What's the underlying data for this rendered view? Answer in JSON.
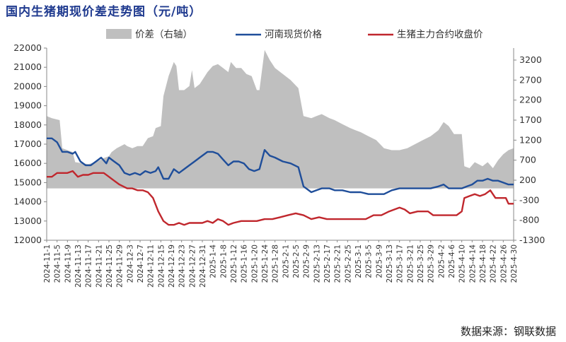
{
  "title": "国内生猪期现价差走势图（元/吨）",
  "source": "数据来源：钢联数据",
  "colors": {
    "spread": "#bfbfbf",
    "spot": "#1f4e9a",
    "futures": "#c0272d",
    "title": "#1f3a8f",
    "axis": "#888888"
  },
  "chart_data": {
    "type": "area",
    "title": "国内生猪期现价差走势图（元/吨）",
    "legend_position": "top",
    "grid": false,
    "left_axis": {
      "ylim": [
        12000,
        22000
      ],
      "ticks": [
        12000,
        13000,
        14000,
        15000,
        16000,
        17000,
        18000,
        19000,
        20000,
        21000,
        22000
      ]
    },
    "right_axis": {
      "ylim": [
        -1300,
        3500
      ],
      "ticks": [
        -1300,
        -800,
        -300,
        200,
        700,
        1200,
        1700,
        2200,
        2700,
        3200
      ]
    },
    "x_labels": [
      "2024-11-1",
      "2024-11-5",
      "2024-11-9",
      "2024-11-13",
      "2024-11-17",
      "2024-11-21",
      "2024-11-25",
      "2024-11-29",
      "2024-12-3",
      "2024-12-7",
      "2024-12-11",
      "2024-12-15",
      "2024-12-19",
      "2024-12-23",
      "2024-12-27",
      "2024-12-31",
      "2025-1-4",
      "2025-1-8",
      "2025-1-12",
      "2025-1-16",
      "2025-1-20",
      "2025-1-24",
      "2025-1-28",
      "2025-2-1",
      "2025-2-5",
      "2025-2-9",
      "2025-2-13",
      "2025-2-17",
      "2025-2-21",
      "2025-2-25",
      "2025-3-1",
      "2025-3-5",
      "2025-3-9",
      "2025-3-13",
      "2025-3-17",
      "2025-3-21",
      "2025-3-25",
      "2025-3-29",
      "2025-4-2",
      "2025-4-6",
      "2025-4-10",
      "2025-4-14",
      "2025-4-18",
      "2025-4-22",
      "2025-4-26",
      "2025-4-30"
    ],
    "series": [
      {
        "name": "价差（右轴）",
        "axis": "right",
        "type": "area",
        "points": [
          [
            "2024-11-1",
            1800
          ],
          [
            "2024-11-3",
            1750
          ],
          [
            "2024-11-6",
            1700
          ],
          [
            "2024-11-7",
            1000
          ],
          [
            "2024-11-9",
            950
          ],
          [
            "2024-11-11",
            900
          ],
          [
            "2024-11-12",
            650
          ],
          [
            "2024-11-15",
            620
          ],
          [
            "2024-11-17",
            600
          ],
          [
            "2024-11-20",
            650
          ],
          [
            "2024-11-23",
            750
          ],
          [
            "2024-11-25",
            800
          ],
          [
            "2024-11-26",
            900
          ],
          [
            "2024-11-28",
            1000
          ],
          [
            "2024-12-1",
            1100
          ],
          [
            "2024-12-2",
            1050
          ],
          [
            "2024-12-4",
            1000
          ],
          [
            "2024-12-6",
            1050
          ],
          [
            "2024-12-8",
            1050
          ],
          [
            "2024-12-10",
            1250
          ],
          [
            "2024-12-12",
            1300
          ],
          [
            "2024-12-13",
            1500
          ],
          [
            "2024-12-15",
            1550
          ],
          [
            "2024-12-16",
            2300
          ],
          [
            "2024-12-18",
            2800
          ],
          [
            "2024-12-20",
            3150
          ],
          [
            "2024-12-21",
            3050
          ],
          [
            "2024-12-22",
            2450
          ],
          [
            "2024-12-24",
            2450
          ],
          [
            "2024-12-26",
            2550
          ],
          [
            "2024-12-27",
            2950
          ],
          [
            "2024-12-28",
            2500
          ],
          [
            "2024-12-30",
            2600
          ],
          [
            "2025-1-2",
            2900
          ],
          [
            "2025-1-4",
            3050
          ],
          [
            "2025-1-6",
            3100
          ],
          [
            "2025-1-8",
            3000
          ],
          [
            "2025-1-10",
            2900
          ],
          [
            "2025-1-11",
            3150
          ],
          [
            "2025-1-13",
            3000
          ],
          [
            "2025-1-15",
            3000
          ],
          [
            "2025-1-17",
            2850
          ],
          [
            "2025-1-19",
            2800
          ],
          [
            "2025-1-21",
            2450
          ],
          [
            "2025-1-22",
            2450
          ],
          [
            "2025-1-24",
            3450
          ],
          [
            "2025-1-26",
            3200
          ],
          [
            "2025-1-28",
            3000
          ],
          [
            "2025-1-31",
            2850
          ],
          [
            "2025-2-3",
            2700
          ],
          [
            "2025-2-6",
            2500
          ],
          [
            "2025-2-8",
            1800
          ],
          [
            "2025-2-11",
            1750
          ],
          [
            "2025-2-13",
            1800
          ],
          [
            "2025-2-15",
            1850
          ],
          [
            "2025-2-18",
            1750
          ],
          [
            "2025-2-20",
            1700
          ],
          [
            "2025-2-23",
            1600
          ],
          [
            "2025-2-26",
            1500
          ],
          [
            "2025-2-28",
            1450
          ],
          [
            "2025-3-2",
            1400
          ],
          [
            "2025-3-5",
            1300
          ],
          [
            "2025-3-8",
            1200
          ],
          [
            "2025-3-11",
            1000
          ],
          [
            "2025-3-14",
            950
          ],
          [
            "2025-3-17",
            950
          ],
          [
            "2025-3-20",
            1000
          ],
          [
            "2025-3-23",
            1100
          ],
          [
            "2025-3-26",
            1200
          ],
          [
            "2025-3-29",
            1300
          ],
          [
            "2025-4-1",
            1450
          ],
          [
            "2025-4-3",
            1650
          ],
          [
            "2025-4-5",
            1550
          ],
          [
            "2025-4-7",
            1350
          ],
          [
            "2025-4-10",
            1350
          ],
          [
            "2025-4-11",
            550
          ],
          [
            "2025-4-13",
            500
          ],
          [
            "2025-4-15",
            650
          ],
          [
            "2025-4-18",
            550
          ],
          [
            "2025-4-20",
            650
          ],
          [
            "2025-4-22",
            500
          ],
          [
            "2025-4-24",
            700
          ],
          [
            "2025-4-26",
            850
          ],
          [
            "2025-4-28",
            950
          ],
          [
            "2025-4-30",
            1000
          ]
        ]
      },
      {
        "name": "河南现货价格",
        "axis": "left",
        "type": "line",
        "points": [
          [
            "2024-11-1",
            17300
          ],
          [
            "2024-11-3",
            17300
          ],
          [
            "2024-11-5",
            17100
          ],
          [
            "2024-11-7",
            16600
          ],
          [
            "2024-11-9",
            16600
          ],
          [
            "2024-11-11",
            16500
          ],
          [
            "2024-11-12",
            16600
          ],
          [
            "2024-11-14",
            16100
          ],
          [
            "2024-11-16",
            15900
          ],
          [
            "2024-11-18",
            15900
          ],
          [
            "2024-11-20",
            16100
          ],
          [
            "2024-11-22",
            16300
          ],
          [
            "2024-11-24",
            16000
          ],
          [
            "2024-11-25",
            16300
          ],
          [
            "2024-11-27",
            16100
          ],
          [
            "2024-11-29",
            15900
          ],
          [
            "2024-12-1",
            15500
          ],
          [
            "2024-12-3",
            15400
          ],
          [
            "2024-12-5",
            15500
          ],
          [
            "2024-12-7",
            15400
          ],
          [
            "2024-12-9",
            15600
          ],
          [
            "2024-12-11",
            15500
          ],
          [
            "2024-12-13",
            15600
          ],
          [
            "2024-12-14",
            15800
          ],
          [
            "2024-12-16",
            15200
          ],
          [
            "2024-12-18",
            15200
          ],
          [
            "2024-12-20",
            15700
          ],
          [
            "2024-12-22",
            15500
          ],
          [
            "2024-12-24",
            15700
          ],
          [
            "2024-12-26",
            15900
          ],
          [
            "2024-12-28",
            16100
          ],
          [
            "2024-12-30",
            16300
          ],
          [
            "2025-1-2",
            16600
          ],
          [
            "2025-1-4",
            16600
          ],
          [
            "2025-1-6",
            16500
          ],
          [
            "2025-1-8",
            16200
          ],
          [
            "2025-1-10",
            15900
          ],
          [
            "2025-1-12",
            16100
          ],
          [
            "2025-1-14",
            16100
          ],
          [
            "2025-1-16",
            16000
          ],
          [
            "2025-1-18",
            15700
          ],
          [
            "2025-1-20",
            15600
          ],
          [
            "2025-1-22",
            15700
          ],
          [
            "2025-1-24",
            16700
          ],
          [
            "2025-1-26",
            16400
          ],
          [
            "2025-1-28",
            16300
          ],
          [
            "2025-1-31",
            16100
          ],
          [
            "2025-2-3",
            16000
          ],
          [
            "2025-2-6",
            15800
          ],
          [
            "2025-2-8",
            14800
          ],
          [
            "2025-2-11",
            14500
          ],
          [
            "2025-2-13",
            14600
          ],
          [
            "2025-2-15",
            14700
          ],
          [
            "2025-2-18",
            14700
          ],
          [
            "2025-2-20",
            14600
          ],
          [
            "2025-2-23",
            14600
          ],
          [
            "2025-2-26",
            14500
          ],
          [
            "2025-2-28",
            14500
          ],
          [
            "2025-3-2",
            14500
          ],
          [
            "2025-3-5",
            14400
          ],
          [
            "2025-3-8",
            14400
          ],
          [
            "2025-3-11",
            14400
          ],
          [
            "2025-3-14",
            14600
          ],
          [
            "2025-3-17",
            14700
          ],
          [
            "2025-3-20",
            14700
          ],
          [
            "2025-3-23",
            14700
          ],
          [
            "2025-3-26",
            14700
          ],
          [
            "2025-3-29",
            14700
          ],
          [
            "2025-4-1",
            14800
          ],
          [
            "2025-4-3",
            14900
          ],
          [
            "2025-4-5",
            14700
          ],
          [
            "2025-4-8",
            14700
          ],
          [
            "2025-4-10",
            14700
          ],
          [
            "2025-4-12",
            14800
          ],
          [
            "2025-4-14",
            14900
          ],
          [
            "2025-4-16",
            15100
          ],
          [
            "2025-4-18",
            15100
          ],
          [
            "2025-4-20",
            15200
          ],
          [
            "2025-4-22",
            15100
          ],
          [
            "2025-4-24",
            15100
          ],
          [
            "2025-4-26",
            15000
          ],
          [
            "2025-4-28",
            14900
          ],
          [
            "2025-4-30",
            14900
          ]
        ]
      },
      {
        "name": "生猪主力合约收盘价",
        "axis": "left",
        "type": "line",
        "points": [
          [
            "2024-11-1",
            15300
          ],
          [
            "2024-11-3",
            15300
          ],
          [
            "2024-11-5",
            15500
          ],
          [
            "2024-11-7",
            15500
          ],
          [
            "2024-11-9",
            15500
          ],
          [
            "2024-11-11",
            15600
          ],
          [
            "2024-11-13",
            15300
          ],
          [
            "2024-11-15",
            15400
          ],
          [
            "2024-11-17",
            15400
          ],
          [
            "2024-11-19",
            15500
          ],
          [
            "2024-11-21",
            15500
          ],
          [
            "2024-11-23",
            15500
          ],
          [
            "2024-11-25",
            15300
          ],
          [
            "2024-11-27",
            15100
          ],
          [
            "2024-11-29",
            14900
          ],
          [
            "2024-12-2",
            14700
          ],
          [
            "2024-12-4",
            14700
          ],
          [
            "2024-12-6",
            14600
          ],
          [
            "2024-12-8",
            14600
          ],
          [
            "2024-12-10",
            14500
          ],
          [
            "2024-12-12",
            14200
          ],
          [
            "2024-12-14",
            13500
          ],
          [
            "2024-12-16",
            13000
          ],
          [
            "2024-12-18",
            12800
          ],
          [
            "2024-12-20",
            12800
          ],
          [
            "2024-12-22",
            12900
          ],
          [
            "2024-12-24",
            12800
          ],
          [
            "2024-12-26",
            12900
          ],
          [
            "2024-12-28",
            12900
          ],
          [
            "2024-12-31",
            12900
          ],
          [
            "2025-1-2",
            13000
          ],
          [
            "2025-1-4",
            12900
          ],
          [
            "2025-1-6",
            13100
          ],
          [
            "2025-1-8",
            13000
          ],
          [
            "2025-1-10",
            12800
          ],
          [
            "2025-1-12",
            12900
          ],
          [
            "2025-1-15",
            13000
          ],
          [
            "2025-1-18",
            13000
          ],
          [
            "2025-1-21",
            13000
          ],
          [
            "2025-1-24",
            13100
          ],
          [
            "2025-1-27",
            13100
          ],
          [
            "2025-1-30",
            13200
          ],
          [
            "2025-2-2",
            13300
          ],
          [
            "2025-2-5",
            13400
          ],
          [
            "2025-2-8",
            13300
          ],
          [
            "2025-2-11",
            13100
          ],
          [
            "2025-2-14",
            13200
          ],
          [
            "2025-2-17",
            13100
          ],
          [
            "2025-2-20",
            13100
          ],
          [
            "2025-2-23",
            13100
          ],
          [
            "2025-2-26",
            13100
          ],
          [
            "2025-3-1",
            13100
          ],
          [
            "2025-3-4",
            13100
          ],
          [
            "2025-3-7",
            13300
          ],
          [
            "2025-3-10",
            13300
          ],
          [
            "2025-3-13",
            13500
          ],
          [
            "2025-3-15",
            13600
          ],
          [
            "2025-3-17",
            13700
          ],
          [
            "2025-3-19",
            13600
          ],
          [
            "2025-3-21",
            13400
          ],
          [
            "2025-3-24",
            13500
          ],
          [
            "2025-3-26",
            13500
          ],
          [
            "2025-3-28",
            13500
          ],
          [
            "2025-3-30",
            13300
          ],
          [
            "2025-4-2",
            13300
          ],
          [
            "2025-4-4",
            13300
          ],
          [
            "2025-4-6",
            13300
          ],
          [
            "2025-4-8",
            13300
          ],
          [
            "2025-4-10",
            13500
          ],
          [
            "2025-4-11",
            14200
          ],
          [
            "2025-4-13",
            14300
          ],
          [
            "2025-4-15",
            14400
          ],
          [
            "2025-4-17",
            14300
          ],
          [
            "2025-4-19",
            14400
          ],
          [
            "2025-4-21",
            14600
          ],
          [
            "2025-4-23",
            14200
          ],
          [
            "2025-4-25",
            14200
          ],
          [
            "2025-4-27",
            14200
          ],
          [
            "2025-4-28",
            13900
          ],
          [
            "2025-4-30",
            13900
          ]
        ]
      }
    ]
  }
}
